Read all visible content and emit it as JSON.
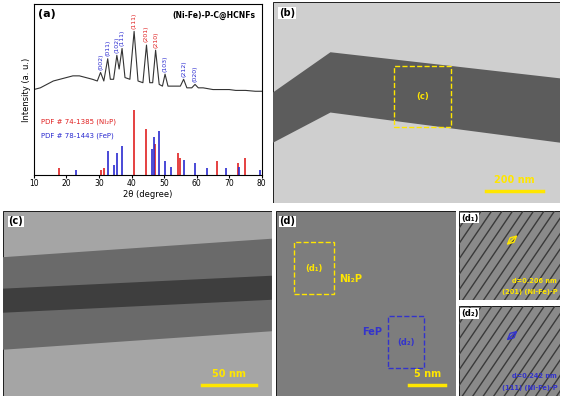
{
  "chart_data": {
    "type": "line",
    "panel": "(a)",
    "title": "(Ni-Fe)-P-C@HCNFs",
    "x_label": "2θ (degree)",
    "y_label": "Intensity (a. u.)",
    "xlim": [
      10,
      80
    ],
    "xticks": [
      10,
      20,
      30,
      40,
      50,
      60,
      70,
      80
    ],
    "ylim": [
      0,
      100
    ],
    "tick_labels": "x",
    "grid": false,
    "series": [
      {
        "type": "line",
        "color": "#333333",
        "x": [
          10,
          12,
          14,
          16,
          18,
          20,
          22,
          24,
          26,
          28,
          29.5,
          30.5,
          31.5,
          32.7,
          33.5,
          34.5,
          35.5,
          36.2,
          37.1,
          38,
          39.5,
          40.8,
          42,
          43.5,
          44.6,
          45.6,
          46.5,
          47.4,
          48.5,
          49.5,
          50.3,
          51.2,
          53,
          55,
          56.0,
          57,
          58.5,
          59.5,
          60.5,
          62,
          65,
          68,
          70,
          72,
          75,
          78,
          80
        ],
        "values": [
          50,
          51,
          53,
          55,
          56,
          57,
          58,
          58,
          57,
          56,
          55,
          60,
          55,
          68,
          56,
          56,
          70,
          62,
          74,
          57,
          56,
          84,
          55,
          54,
          76,
          54,
          54,
          73,
          53,
          52,
          59,
          52,
          52,
          52,
          56,
          51,
          51,
          53,
          51,
          51,
          50,
          50,
          50,
          49.5,
          49.5,
          49,
          49
        ]
      },
      {
        "name": "PDF # 74-1385 (Ni₂P)",
        "type": "stem",
        "color": "#e02020",
        "x": [
          17.6,
          30.5,
          31.7,
          40.7,
          44.6,
          47.3,
          54.2,
          54.9,
          66.3,
          72.7,
          74.7
        ],
        "values": [
          4,
          3,
          4,
          38,
          27,
          18,
          13,
          10,
          8,
          7,
          10
        ]
      },
      {
        "name": "PDF # 78-1443 (FeP)",
        "type": "stem",
        "color": "#2a2ad0",
        "x": [
          23.0,
          32.7,
          34.5,
          35.5,
          37.2,
          46.3,
          47.0,
          48.3,
          50.4,
          52.0,
          56.1,
          59.6,
          63.3,
          69.0,
          73.1,
          79.4
        ],
        "values": [
          3,
          14,
          6,
          13,
          17,
          15,
          22,
          26,
          8,
          5,
          9,
          7,
          4,
          4,
          5,
          3
        ]
      }
    ],
    "annotations": [
      {
        "x": 30.5,
        "text": "(002)",
        "color": "#2a2ad0"
      },
      {
        "x": 32.7,
        "text": "(011)",
        "color": "#2a2ad0"
      },
      {
        "x": 35.5,
        "text": "(102)",
        "color": "#2a2ad0"
      },
      {
        "x": 37.1,
        "text": "(111)",
        "color": "#2a2ad0"
      },
      {
        "x": 40.8,
        "text": "(111)",
        "color": "#e02020"
      },
      {
        "x": 44.6,
        "text": "(201)",
        "color": "#e02020"
      },
      {
        "x": 47.4,
        "text": "(210)",
        "color": "#e02020"
      },
      {
        "x": 50.3,
        "text": "(103)",
        "color": "#2a2ad0"
      },
      {
        "x": 56.0,
        "text": "(212)",
        "color": "#2a2ad0"
      },
      {
        "x": 59.5,
        "text": "(020)",
        "color": "#2a2ad0"
      }
    ]
  },
  "image_panels": [
    {
      "label": "(b)",
      "scale_bar": "200 nm",
      "boxes": [
        {
          "label": "(c)",
          "color": "#ffe600"
        }
      ]
    },
    {
      "label": "(c)",
      "scale_bar": "50 nm"
    },
    {
      "label": "(d)",
      "scale_bar": "5 nm",
      "boxes": [
        {
          "label": "(d₁)",
          "color": "#ffe600",
          "phase": "Ni₂P"
        },
        {
          "label": "(d₂)",
          "color": "#3333cc",
          "phase": "FeP"
        }
      ]
    },
    {
      "label": "(d₁)",
      "texts": [
        "d=0.206 nm",
        "(201) (Ni-Fe)-P"
      ],
      "color": "#ffe600"
    },
    {
      "label": "(d₂)",
      "texts": [
        "d=0.242 nm",
        "(111) (Ni-Fe)-P"
      ],
      "color": "#3333cc"
    }
  ]
}
